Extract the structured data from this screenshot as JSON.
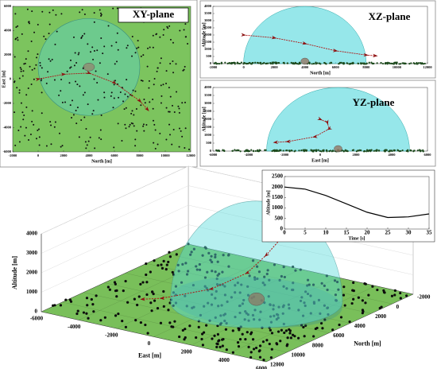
{
  "trajectory": {
    "north": [
      0,
      2000,
      4000,
      6000,
      8000,
      8600
    ],
    "east": [
      0,
      400,
      500,
      -300,
      -1800,
      -2500
    ],
    "altitude": [
      2000,
      1800,
      1400,
      900,
      600,
      550
    ]
  },
  "sphere": {
    "north": 4000,
    "east": 1000,
    "radius": 4000
  },
  "chart_data": [
    {
      "type": "trajectory",
      "title": "XY-plane",
      "xlabel": "North [m]",
      "ylabel": "East [m]",
      "xlim": [
        -2000,
        12000
      ],
      "xticks": [
        -2000,
        0,
        2000,
        4000,
        6000,
        8000,
        10000,
        12000
      ],
      "ylim": [
        -6000,
        6000
      ],
      "yticks": [
        -6000,
        -4000,
        -2000,
        0,
        2000,
        4000,
        6000
      ]
    },
    {
      "type": "trajectory",
      "title": "XZ-plane",
      "xlabel": "North [m]",
      "ylabel": "Altitude [m]",
      "xlim": [
        -2000,
        12000
      ],
      "xticks": [
        -2000,
        0,
        2000,
        4000,
        6000,
        8000,
        10000,
        12000
      ],
      "ylim": [
        0,
        4000
      ],
      "yticks": [
        0,
        500,
        1000,
        1500,
        2000,
        2500,
        3000,
        3500,
        4000
      ]
    },
    {
      "type": "trajectory",
      "title": "YZ-plane",
      "xlabel": "East [m]",
      "ylabel": "Altitude [m]",
      "xlim": [
        -6000,
        6000
      ],
      "xticks": [
        -6000,
        -4000,
        -2000,
        0,
        2000,
        4000,
        6000
      ],
      "ylim": [
        0,
        4000
      ],
      "yticks": [
        0,
        500,
        1000,
        1500,
        2000,
        2500,
        3000,
        3500,
        4000
      ]
    },
    {
      "type": "trajectory3d",
      "xlabel": "East [m]",
      "ylabel": "North [m]",
      "zlabel": "Altitude [m]",
      "xlim": [
        -6000,
        6000
      ],
      "xticks": [
        -6000,
        -4000,
        -2000,
        0,
        2000,
        4000,
        6000
      ],
      "ylim": [
        -2000,
        12000
      ],
      "yticks": [
        -2000,
        0,
        2000,
        4000,
        6000,
        8000,
        10000,
        12000
      ],
      "zlim": [
        0,
        4000
      ],
      "zticks": [
        0,
        1000,
        2000,
        3000,
        4000
      ]
    },
    {
      "type": "line",
      "xlabel": "Time [s]",
      "ylabel": "Altitude [m]",
      "x": [
        0,
        5,
        10,
        15,
        20,
        25,
        30,
        35
      ],
      "values": [
        2000,
        1900,
        1600,
        1200,
        800,
        550,
        580,
        720
      ],
      "color": "#000000",
      "xlim": [
        0,
        35
      ],
      "xticks": [
        0,
        5,
        10,
        15,
        20,
        25,
        30,
        35
      ],
      "ylim": [
        0,
        2500
      ],
      "yticks": [
        0,
        500,
        1000,
        1500,
        2000,
        2500
      ]
    }
  ]
}
